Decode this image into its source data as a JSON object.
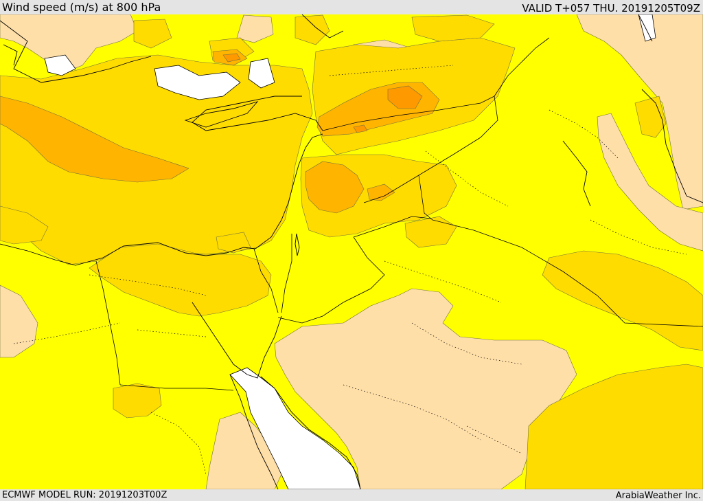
{
  "header": {
    "title": "Wind speed (m/s) at 800 hPa",
    "valid": "VALID T+057 THU. 20191205T09Z"
  },
  "footer": {
    "model_run": "ECMWF MODEL RUN: 20191203T00Z",
    "credit": "ArabiaWeather Inc."
  },
  "map": {
    "colors": {
      "ocean_field": "#ffff00",
      "band_light": "#ffdfa8",
      "band_gold": "#ffdc00",
      "band_orange": "#ffb400",
      "band_dark": "#ff9900",
      "no_data": "#ffffff",
      "coast": "#000000"
    }
  }
}
